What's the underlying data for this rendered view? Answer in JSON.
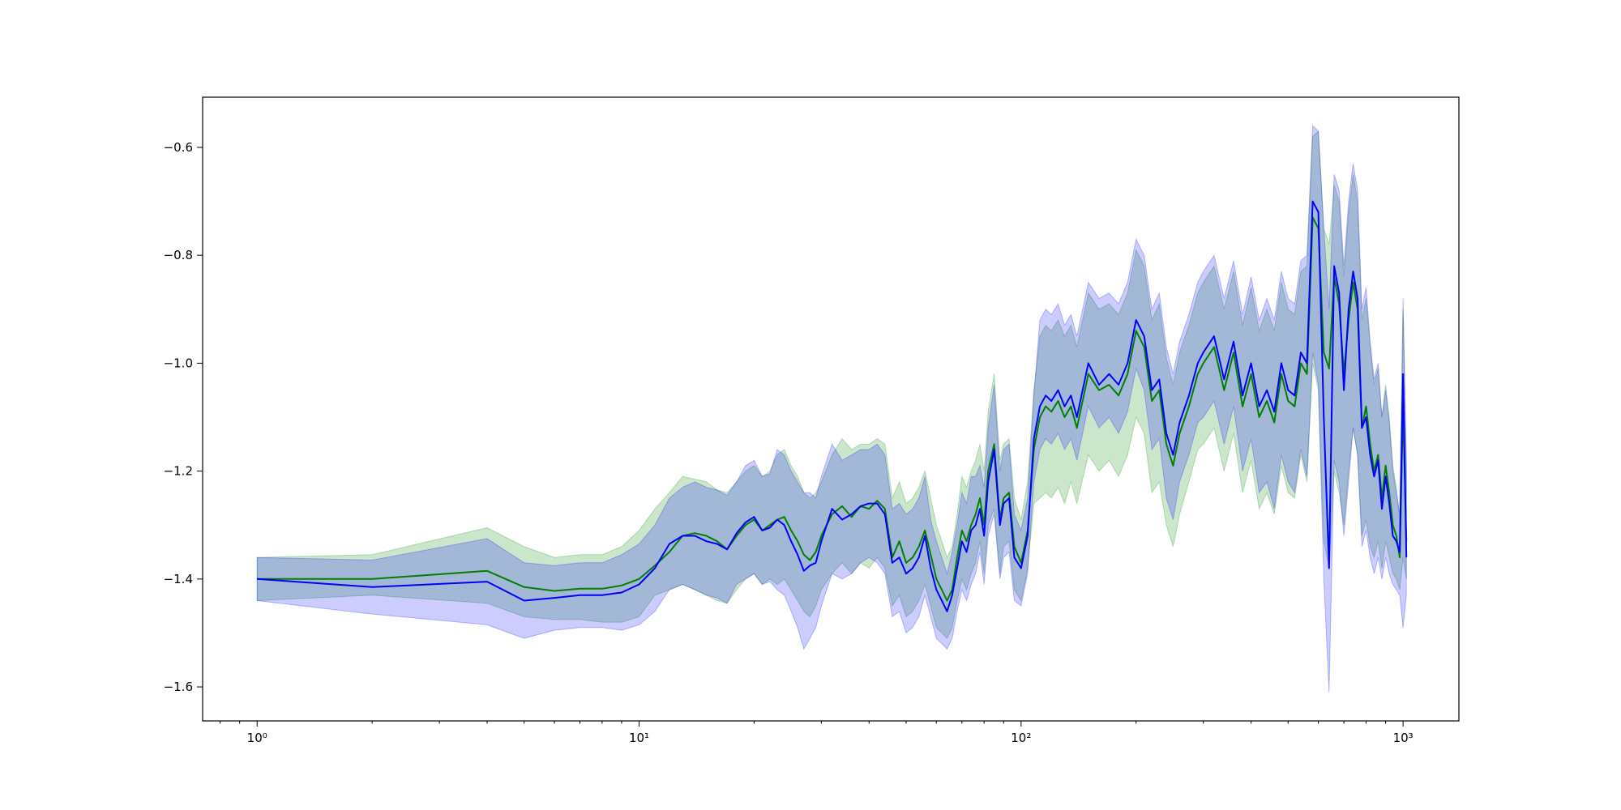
{
  "chart_data": {
    "type": "line",
    "title": "",
    "xlabel": "",
    "ylabel": "",
    "xscale": "log",
    "xlim": [
      0.72,
      1400
    ],
    "ylim": [
      -1.663,
      -0.507
    ],
    "grid": false,
    "legend": "none",
    "x_ticks": [
      {
        "value": 1,
        "label": "10⁰"
      },
      {
        "value": 10,
        "label": "10¹"
      },
      {
        "value": 100,
        "label": "10²"
      },
      {
        "value": 1000,
        "label": "10³"
      }
    ],
    "y_ticks": [
      {
        "value": -1.6,
        "label": "−1.6"
      },
      {
        "value": -1.4,
        "label": "−1.4"
      },
      {
        "value": -1.2,
        "label": "−1.2"
      },
      {
        "value": -1.0,
        "label": "−1.0"
      },
      {
        "value": -0.8,
        "label": "−0.8"
      },
      {
        "value": -0.6,
        "label": "−0.6"
      }
    ],
    "colors": {
      "green_line": "#007f00",
      "green_band": "#008000",
      "blue_line": "#0000ff",
      "blue_band": "#0000ff"
    },
    "series": [
      {
        "color": "#007f00",
        "band_color": "#008000",
        "x": [
          1,
          2,
          4,
          5,
          6,
          7,
          8,
          9,
          10,
          11,
          12,
          13,
          14,
          15,
          16,
          17,
          18,
          19,
          20,
          21,
          22,
          23,
          24,
          25,
          26,
          27,
          28,
          29,
          30,
          32,
          34,
          36,
          38,
          40,
          42,
          44,
          46,
          48,
          50,
          52,
          54,
          56,
          58,
          60,
          62,
          64,
          66,
          68,
          70,
          72,
          74,
          76,
          78,
          80,
          82,
          85,
          88,
          90,
          93,
          96,
          100,
          104,
          108,
          112,
          116,
          120,
          125,
          130,
          135,
          140,
          150,
          160,
          170,
          180,
          190,
          200,
          210,
          220,
          230,
          240,
          250,
          260,
          275,
          290,
          300,
          320,
          340,
          360,
          380,
          400,
          420,
          440,
          460,
          480,
          500,
          520,
          540,
          560,
          580,
          600,
          620,
          640,
          660,
          680,
          700,
          720,
          740,
          760,
          780,
          800,
          820,
          840,
          860,
          880,
          900,
          920,
          940,
          960,
          980,
          1000,
          1020
        ],
        "y": [
          -1.4,
          -1.4,
          -1.385,
          -1.415,
          -1.422,
          -1.418,
          -1.418,
          -1.412,
          -1.4,
          -1.375,
          -1.35,
          -1.32,
          -1.315,
          -1.32,
          -1.33,
          -1.345,
          -1.32,
          -1.3,
          -1.29,
          -1.31,
          -1.3,
          -1.29,
          -1.285,
          -1.31,
          -1.33,
          -1.355,
          -1.365,
          -1.35,
          -1.32,
          -1.28,
          -1.265,
          -1.285,
          -1.265,
          -1.27,
          -1.255,
          -1.27,
          -1.36,
          -1.33,
          -1.37,
          -1.36,
          -1.34,
          -1.31,
          -1.355,
          -1.4,
          -1.42,
          -1.44,
          -1.42,
          -1.36,
          -1.31,
          -1.33,
          -1.3,
          -1.28,
          -1.25,
          -1.3,
          -1.2,
          -1.15,
          -1.29,
          -1.25,
          -1.24,
          -1.34,
          -1.37,
          -1.31,
          -1.16,
          -1.1,
          -1.08,
          -1.09,
          -1.07,
          -1.1,
          -1.08,
          -1.12,
          -1.02,
          -1.05,
          -1.04,
          -1.06,
          -1.02,
          -0.94,
          -0.97,
          -1.07,
          -1.05,
          -1.15,
          -1.19,
          -1.13,
          -1.08,
          -1.02,
          -1.0,
          -0.97,
          -1.05,
          -0.98,
          -1.08,
          -1.02,
          -1.1,
          -1.07,
          -1.11,
          -1.02,
          -1.07,
          -1.08,
          -1.0,
          -1.02,
          -0.73,
          -0.75,
          -0.98,
          -1.01,
          -0.84,
          -0.89,
          -1.02,
          -0.92,
          -0.85,
          -0.9,
          -1.12,
          -1.08,
          -1.15,
          -1.2,
          -1.17,
          -1.25,
          -1.19,
          -1.24,
          -1.3,
          -1.32,
          -1.36,
          -1.08,
          -1.33
        ],
        "lower": [
          -1.44,
          -1.43,
          -1.445,
          -1.47,
          -1.475,
          -1.475,
          -1.48,
          -1.48,
          -1.47,
          -1.43,
          -1.42,
          -1.41,
          -1.42,
          -1.43,
          -1.44,
          -1.445,
          -1.42,
          -1.4,
          -1.39,
          -1.41,
          -1.4,
          -1.41,
          -1.4,
          -1.42,
          -1.44,
          -1.46,
          -1.47,
          -1.45,
          -1.42,
          -1.39,
          -1.37,
          -1.39,
          -1.37,
          -1.38,
          -1.36,
          -1.38,
          -1.45,
          -1.43,
          -1.47,
          -1.46,
          -1.44,
          -1.41,
          -1.45,
          -1.49,
          -1.5,
          -1.51,
          -1.49,
          -1.44,
          -1.4,
          -1.42,
          -1.39,
          -1.37,
          -1.33,
          -1.39,
          -1.3,
          -1.27,
          -1.39,
          -1.34,
          -1.33,
          -1.42,
          -1.44,
          -1.38,
          -1.26,
          -1.25,
          -1.24,
          -1.25,
          -1.23,
          -1.26,
          -1.22,
          -1.26,
          -1.17,
          -1.2,
          -1.18,
          -1.21,
          -1.17,
          -1.1,
          -1.13,
          -1.24,
          -1.22,
          -1.3,
          -1.34,
          -1.28,
          -1.22,
          -1.16,
          -1.15,
          -1.12,
          -1.2,
          -1.13,
          -1.24,
          -1.18,
          -1.27,
          -1.24,
          -1.28,
          -1.19,
          -1.24,
          -1.25,
          -1.17,
          -1.22,
          -1.0,
          -1.05,
          -1.33,
          -1.38,
          -1.2,
          -1.24,
          -1.3,
          -1.2,
          -1.12,
          -1.17,
          -1.32,
          -1.29,
          -1.34,
          -1.36,
          -1.33,
          -1.38,
          -1.33,
          -1.36,
          -1.39,
          -1.4,
          -1.42,
          -1.36,
          -1.4
        ],
        "upper": [
          -1.36,
          -1.355,
          -1.305,
          -1.34,
          -1.36,
          -1.355,
          -1.355,
          -1.34,
          -1.31,
          -1.27,
          -1.24,
          -1.21,
          -1.215,
          -1.22,
          -1.235,
          -1.24,
          -1.22,
          -1.2,
          -1.19,
          -1.21,
          -1.2,
          -1.17,
          -1.16,
          -1.19,
          -1.21,
          -1.24,
          -1.25,
          -1.24,
          -1.22,
          -1.17,
          -1.14,
          -1.16,
          -1.15,
          -1.15,
          -1.14,
          -1.15,
          -1.25,
          -1.22,
          -1.26,
          -1.25,
          -1.23,
          -1.2,
          -1.25,
          -1.3,
          -1.33,
          -1.36,
          -1.34,
          -1.28,
          -1.21,
          -1.23,
          -1.2,
          -1.18,
          -1.15,
          -1.2,
          -1.09,
          -1.02,
          -1.18,
          -1.15,
          -1.14,
          -1.25,
          -1.29,
          -1.22,
          -1.05,
          -0.95,
          -0.93,
          -0.94,
          -0.92,
          -0.95,
          -0.93,
          -0.97,
          -0.87,
          -0.9,
          -0.89,
          -0.91,
          -0.87,
          -0.79,
          -0.82,
          -0.92,
          -0.89,
          -0.99,
          -1.04,
          -0.98,
          -0.93,
          -0.87,
          -0.85,
          -0.82,
          -0.9,
          -0.83,
          -0.93,
          -0.86,
          -0.94,
          -0.9,
          -0.94,
          -0.85,
          -0.9,
          -0.91,
          -0.83,
          -0.82,
          -0.58,
          -0.57,
          -0.75,
          -0.78,
          -0.67,
          -0.7,
          -0.84,
          -0.72,
          -0.65,
          -0.7,
          -0.92,
          -0.88,
          -0.97,
          -1.04,
          -1.01,
          -1.1,
          -1.04,
          -1.1,
          -1.19,
          -1.23,
          -1.29,
          -0.9,
          -1.2
        ]
      },
      {
        "color": "#0000ff",
        "band_color": "#0000ff",
        "x": [
          1,
          2,
          4,
          5,
          6,
          7,
          8,
          9,
          10,
          11,
          12,
          13,
          14,
          15,
          16,
          17,
          18,
          19,
          20,
          21,
          22,
          23,
          24,
          25,
          26,
          27,
          28,
          29,
          30,
          32,
          34,
          36,
          38,
          40,
          42,
          44,
          46,
          48,
          50,
          52,
          54,
          56,
          58,
          60,
          62,
          64,
          66,
          68,
          70,
          72,
          74,
          76,
          78,
          80,
          82,
          85,
          88,
          90,
          93,
          96,
          100,
          104,
          108,
          112,
          116,
          120,
          125,
          130,
          135,
          140,
          150,
          160,
          170,
          180,
          190,
          200,
          210,
          220,
          230,
          240,
          250,
          260,
          275,
          290,
          300,
          320,
          340,
          360,
          380,
          400,
          420,
          440,
          460,
          480,
          500,
          520,
          540,
          560,
          580,
          600,
          620,
          640,
          660,
          680,
          700,
          720,
          740,
          760,
          780,
          800,
          820,
          840,
          860,
          880,
          900,
          920,
          940,
          960,
          980,
          1000,
          1020
        ],
        "y": [
          -1.4,
          -1.415,
          -1.405,
          -1.44,
          -1.435,
          -1.43,
          -1.43,
          -1.425,
          -1.41,
          -1.38,
          -1.335,
          -1.32,
          -1.32,
          -1.33,
          -1.335,
          -1.345,
          -1.315,
          -1.295,
          -1.285,
          -1.31,
          -1.305,
          -1.29,
          -1.3,
          -1.33,
          -1.355,
          -1.385,
          -1.375,
          -1.37,
          -1.33,
          -1.27,
          -1.29,
          -1.28,
          -1.265,
          -1.26,
          -1.26,
          -1.28,
          -1.37,
          -1.36,
          -1.39,
          -1.38,
          -1.36,
          -1.32,
          -1.38,
          -1.42,
          -1.44,
          -1.46,
          -1.43,
          -1.38,
          -1.33,
          -1.35,
          -1.31,
          -1.3,
          -1.27,
          -1.32,
          -1.22,
          -1.16,
          -1.3,
          -1.26,
          -1.25,
          -1.36,
          -1.38,
          -1.32,
          -1.14,
          -1.08,
          -1.06,
          -1.07,
          -1.05,
          -1.08,
          -1.06,
          -1.1,
          -1.0,
          -1.04,
          -1.02,
          -1.04,
          -1.0,
          -0.92,
          -0.95,
          -1.05,
          -1.03,
          -1.13,
          -1.17,
          -1.11,
          -1.06,
          -1.0,
          -0.98,
          -0.95,
          -1.03,
          -0.96,
          -1.06,
          -1.0,
          -1.08,
          -1.05,
          -1.09,
          -1.0,
          -1.05,
          -1.06,
          -0.98,
          -1.0,
          -0.7,
          -0.72,
          -1.1,
          -1.38,
          -0.82,
          -0.87,
          -1.05,
          -0.9,
          -0.83,
          -0.88,
          -1.12,
          -1.1,
          -1.17,
          -1.21,
          -1.18,
          -1.27,
          -1.21,
          -1.26,
          -1.32,
          -1.33,
          -1.35,
          -1.02,
          -1.36
        ],
        "lower": [
          -1.44,
          -1.465,
          -1.485,
          -1.51,
          -1.495,
          -1.49,
          -1.49,
          -1.495,
          -1.485,
          -1.46,
          -1.42,
          -1.41,
          -1.42,
          -1.43,
          -1.435,
          -1.445,
          -1.41,
          -1.4,
          -1.39,
          -1.41,
          -1.405,
          -1.42,
          -1.43,
          -1.46,
          -1.49,
          -1.53,
          -1.51,
          -1.49,
          -1.45,
          -1.39,
          -1.4,
          -1.39,
          -1.37,
          -1.36,
          -1.37,
          -1.39,
          -1.47,
          -1.46,
          -1.5,
          -1.49,
          -1.47,
          -1.43,
          -1.47,
          -1.51,
          -1.52,
          -1.53,
          -1.51,
          -1.46,
          -1.42,
          -1.44,
          -1.41,
          -1.39,
          -1.35,
          -1.41,
          -1.32,
          -1.28,
          -1.4,
          -1.36,
          -1.35,
          -1.44,
          -1.45,
          -1.39,
          -1.22,
          -1.16,
          -1.14,
          -1.15,
          -1.13,
          -1.16,
          -1.14,
          -1.18,
          -1.08,
          -1.12,
          -1.1,
          -1.13,
          -1.09,
          -1.01,
          -1.05,
          -1.16,
          -1.14,
          -1.25,
          -1.29,
          -1.22,
          -1.17,
          -1.11,
          -1.1,
          -1.07,
          -1.15,
          -1.08,
          -1.2,
          -1.14,
          -1.24,
          -1.22,
          -1.27,
          -1.17,
          -1.22,
          -1.24,
          -1.16,
          -1.21,
          -0.98,
          -1.04,
          -1.4,
          -1.61,
          -1.18,
          -1.22,
          -1.32,
          -1.22,
          -1.12,
          -1.17,
          -1.34,
          -1.31,
          -1.36,
          -1.39,
          -1.36,
          -1.4,
          -1.36,
          -1.39,
          -1.41,
          -1.42,
          -1.43,
          -1.49,
          -1.43
        ],
        "upper": [
          -1.36,
          -1.365,
          -1.325,
          -1.37,
          -1.375,
          -1.37,
          -1.37,
          -1.355,
          -1.335,
          -1.3,
          -1.25,
          -1.23,
          -1.22,
          -1.23,
          -1.235,
          -1.245,
          -1.22,
          -1.19,
          -1.18,
          -1.21,
          -1.205,
          -1.16,
          -1.17,
          -1.2,
          -1.22,
          -1.24,
          -1.24,
          -1.25,
          -1.21,
          -1.15,
          -1.18,
          -1.17,
          -1.16,
          -1.16,
          -1.15,
          -1.17,
          -1.27,
          -1.26,
          -1.28,
          -1.27,
          -1.25,
          -1.21,
          -1.29,
          -1.33,
          -1.36,
          -1.39,
          -1.35,
          -1.3,
          -1.24,
          -1.26,
          -1.21,
          -1.21,
          -1.19,
          -1.23,
          -1.12,
          -1.04,
          -1.2,
          -1.16,
          -1.15,
          -1.28,
          -1.31,
          -1.25,
          -1.06,
          -0.92,
          -0.9,
          -0.91,
          -0.89,
          -0.93,
          -0.91,
          -0.95,
          -0.85,
          -0.88,
          -0.87,
          -0.89,
          -0.85,
          -0.77,
          -0.8,
          -0.9,
          -0.87,
          -0.97,
          -1.02,
          -0.96,
          -0.91,
          -0.85,
          -0.83,
          -0.8,
          -0.88,
          -0.81,
          -0.91,
          -0.84,
          -0.92,
          -0.88,
          -0.92,
          -0.83,
          -0.88,
          -0.89,
          -0.81,
          -0.8,
          -0.56,
          -0.57,
          -0.75,
          -0.9,
          -0.65,
          -0.68,
          -0.82,
          -0.7,
          -0.63,
          -0.68,
          -0.9,
          -0.86,
          -0.96,
          -1.03,
          -1.0,
          -1.1,
          -1.05,
          -1.11,
          -1.2,
          -1.24,
          -1.28,
          -0.88,
          -1.18
        ]
      }
    ]
  }
}
